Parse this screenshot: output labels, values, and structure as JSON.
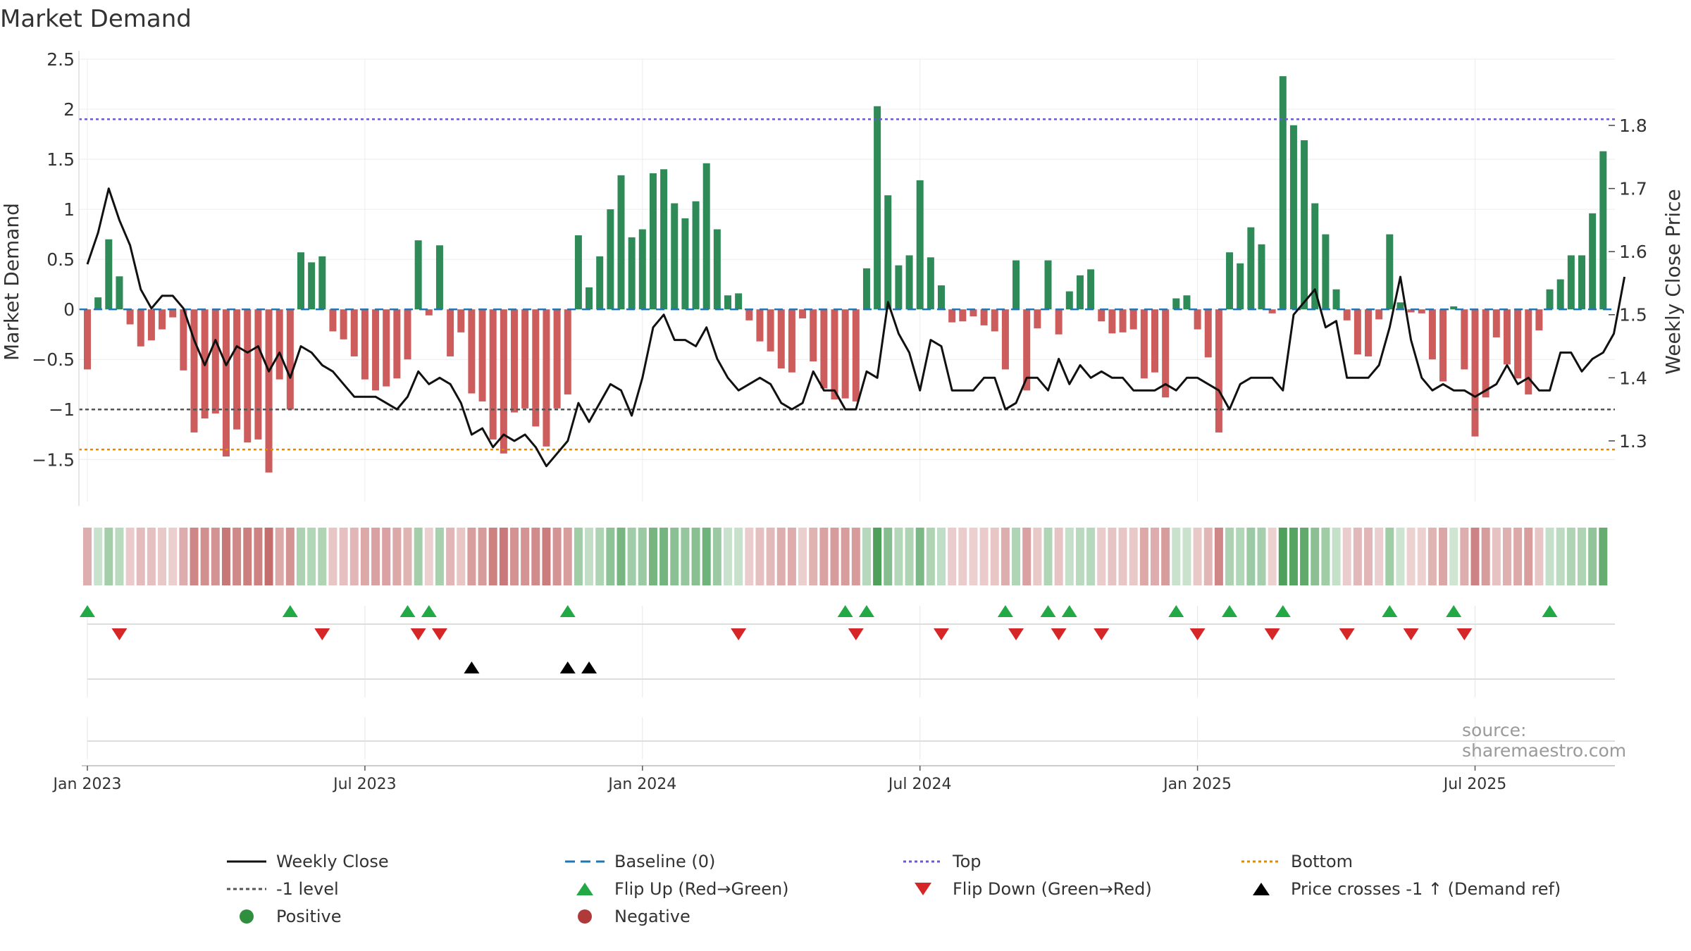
{
  "chart_data": {
    "type": "bar",
    "title": "Market Demand",
    "ylabel_left": "Market Demand",
    "ylabel_right": "Weekly Close Price",
    "ylim_left": [
      -1.85,
      2.5
    ],
    "ylim_right": [
      1.215,
      1.905
    ],
    "left_ticks": [
      {
        "v": 2.5,
        "label": "2.5"
      },
      {
        "v": 2,
        "label": "2"
      },
      {
        "v": 1.5,
        "label": "1.5"
      },
      {
        "v": 1,
        "label": "1"
      },
      {
        "v": 0.5,
        "label": "0.5"
      },
      {
        "v": 0,
        "label": "0"
      },
      {
        "v": -0.5,
        "label": "−0.5"
      },
      {
        "v": -1,
        "label": "−1"
      },
      {
        "v": -1.5,
        "label": "−1.5"
      }
    ],
    "right_ticks": [
      {
        "v": 1.8,
        "label": "1.8"
      },
      {
        "v": 1.7,
        "label": "1.7"
      },
      {
        "v": 1.6,
        "label": "1.6"
      },
      {
        "v": 1.5,
        "label": "1.5"
      },
      {
        "v": 1.4,
        "label": "1.4"
      },
      {
        "v": 1.3,
        "label": "1.3"
      }
    ],
    "x_ticks": [
      {
        "week": 1,
        "label": "Jan 2023"
      },
      {
        "week": 27,
        "label": "Jul 2023"
      },
      {
        "week": 53,
        "label": "Jan 2024"
      },
      {
        "week": 79,
        "label": "Jul 2024"
      },
      {
        "week": 105,
        "label": "Jan 2025"
      },
      {
        "week": 131,
        "label": "Jul 2025"
      }
    ],
    "reference_lines": {
      "baseline": 0,
      "top": 1.9,
      "minus_one_level": -1,
      "bottom": -1.4
    },
    "demand": [
      -0.6,
      0.12,
      0.7,
      0.33,
      -0.15,
      -0.37,
      -0.31,
      -0.2,
      -0.08,
      -0.61,
      -1.23,
      -1.09,
      -1.04,
      -1.47,
      -1.2,
      -1.33,
      -1.3,
      -1.63,
      -0.7,
      -1.0,
      0.57,
      0.47,
      0.53,
      -0.22,
      -0.3,
      -0.47,
      -0.7,
      -0.81,
      -0.77,
      -0.69,
      -0.5,
      0.69,
      -0.06,
      0.64,
      -0.47,
      -0.23,
      -0.84,
      -0.92,
      -1.3,
      -1.44,
      -1.03,
      -0.99,
      -1.17,
      -1.37,
      -0.99,
      -0.85,
      0.74,
      0.22,
      0.53,
      1.0,
      1.34,
      0.72,
      0.8,
      1.36,
      1.4,
      1.06,
      0.91,
      1.08,
      1.46,
      0.8,
      0.14,
      0.16,
      -0.11,
      -0.32,
      -0.42,
      -0.59,
      -0.63,
      -0.09,
      -0.52,
      -0.79,
      -0.9,
      -0.89,
      -0.92,
      0.41,
      2.03,
      1.14,
      0.44,
      0.54,
      1.29,
      0.52,
      0.24,
      -0.13,
      -0.12,
      -0.07,
      -0.16,
      -0.22,
      -0.6,
      0.49,
      -0.81,
      -0.19,
      0.49,
      -0.25,
      0.18,
      0.34,
      0.4,
      -0.12,
      -0.24,
      -0.23,
      -0.2,
      -0.69,
      -0.63,
      -0.88,
      0.11,
      0.14,
      -0.2,
      -0.48,
      -1.23,
      0.57,
      0.46,
      0.82,
      0.65,
      -0.04,
      2.33,
      1.84,
      1.69,
      1.06,
      0.75,
      0.2,
      -0.11,
      -0.45,
      -0.47,
      -0.1,
      0.75,
      0.07,
      -0.03,
      -0.04,
      -0.5,
      -0.72,
      0.03,
      -0.6,
      -1.27,
      -0.88,
      -0.28,
      -0.55,
      -0.69,
      -0.85,
      -0.21,
      0.2,
      0.3,
      0.54,
      0.54,
      0.96,
      1.58
    ],
    "price": [
      1.58,
      1.63,
      1.7,
      1.65,
      1.61,
      1.54,
      1.51,
      1.53,
      1.53,
      1.51,
      1.46,
      1.42,
      1.46,
      1.42,
      1.45,
      1.44,
      1.45,
      1.41,
      1.44,
      1.4,
      1.45,
      1.44,
      1.42,
      1.41,
      1.39,
      1.37,
      1.37,
      1.37,
      1.36,
      1.35,
      1.37,
      1.41,
      1.39,
      1.4,
      1.39,
      1.36,
      1.31,
      1.32,
      1.29,
      1.31,
      1.3,
      1.31,
      1.29,
      1.26,
      1.28,
      1.3,
      1.36,
      1.33,
      1.36,
      1.39,
      1.38,
      1.34,
      1.4,
      1.48,
      1.5,
      1.46,
      1.46,
      1.45,
      1.48,
      1.43,
      1.4,
      1.38,
      1.39,
      1.4,
      1.39,
      1.36,
      1.35,
      1.36,
      1.41,
      1.38,
      1.38,
      1.35,
      1.35,
      1.41,
      1.4,
      1.52,
      1.47,
      1.44,
      1.38,
      1.46,
      1.45,
      1.38,
      1.38,
      1.38,
      1.4,
      1.4,
      1.35,
      1.36,
      1.4,
      1.4,
      1.38,
      1.43,
      1.39,
      1.42,
      1.4,
      1.41,
      1.4,
      1.4,
      1.38,
      1.38,
      1.38,
      1.39,
      1.38,
      1.4,
      1.4,
      1.39,
      1.38,
      1.35,
      1.39,
      1.4,
      1.4,
      1.4,
      1.38,
      1.5,
      1.52,
      1.54,
      1.48,
      1.49,
      1.4,
      1.4,
      1.4,
      1.42,
      1.48,
      1.56,
      1.46,
      1.4,
      1.38,
      1.39,
      1.38,
      1.38,
      1.37,
      1.38,
      1.39,
      1.42,
      1.39,
      1.4,
      1.38,
      1.38,
      1.44,
      1.44,
      1.41,
      1.43,
      1.44,
      1.47,
      1.56
    ],
    "flip_up_weeks": [
      1,
      20,
      31,
      33,
      46,
      72,
      74,
      87,
      91,
      93,
      103,
      108,
      113,
      123,
      129,
      138
    ],
    "flip_down_weeks": [
      4,
      23,
      32,
      34,
      62,
      73,
      81,
      88,
      92,
      96,
      105,
      112,
      119,
      125,
      130
    ],
    "price_cross_weeks": [
      37,
      46,
      48
    ],
    "strip": {
      "positive_color": "#2f8f3e",
      "negative_color": "#b03a3a"
    },
    "legend": [
      {
        "key": "close",
        "label": "Weekly Close"
      },
      {
        "key": "baseline",
        "label": "Baseline (0)"
      },
      {
        "key": "top",
        "label": "Top"
      },
      {
        "key": "bottom",
        "label": "Bottom"
      },
      {
        "key": "minus1",
        "label": "-1 level"
      },
      {
        "key": "flipup",
        "label": "Flip Up (Red→Green)"
      },
      {
        "key": "flipdown",
        "label": "Flip Down (Green→Red)"
      },
      {
        "key": "cross",
        "label": "Price crosses -1 ↑ (Demand ref)"
      },
      {
        "key": "positive",
        "label": "Positive"
      },
      {
        "key": "negative",
        "label": "Negative"
      }
    ],
    "source": "source: sharemaestro.com"
  },
  "colors": {
    "positive": "#2e8b57",
    "negative": "#cd5c5c",
    "price_line": "#111111",
    "baseline": "#1f77b4",
    "top": "#6a5acd",
    "minus_one": "#555555",
    "bottom": "#e08c00",
    "flip_up": "#22a845",
    "flip_down": "#d62728",
    "cross": "#000000"
  }
}
